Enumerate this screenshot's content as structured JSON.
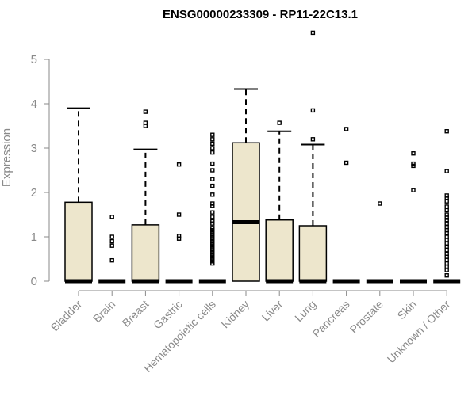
{
  "chart_data": {
    "type": "boxplot",
    "title": "ENSG00000233309 - RP11-22C13.1",
    "xlabel": "",
    "ylabel": "Expression",
    "ylim": [
      0,
      5.7
    ],
    "yticks": [
      0,
      1,
      2,
      3,
      4,
      5
    ],
    "categories": [
      "Bladder",
      "Brain",
      "Breast",
      "Gastric",
      "Hematopoietic cells",
      "Kidney",
      "Liver",
      "Lung",
      "Pancreas",
      "Prostate",
      "Skin",
      "Unknown / Other"
    ],
    "boxes": [
      {
        "q1": 0,
        "median": 0,
        "q3": 1.78,
        "whisker_low": 0,
        "whisker_high": 3.9,
        "outliers": []
      },
      {
        "q1": 0,
        "median": 0,
        "q3": 0,
        "whisker_low": 0,
        "whisker_high": 0,
        "outliers": [
          1.45,
          1.0,
          0.9,
          0.8,
          0.47
        ]
      },
      {
        "q1": 0,
        "median": 0,
        "q3": 1.27,
        "whisker_low": 0,
        "whisker_high": 2.97,
        "outliers": [
          3.82,
          3.57,
          3.5
        ]
      },
      {
        "q1": 0,
        "median": 0,
        "q3": 0,
        "whisker_low": 0,
        "whisker_high": 0,
        "outliers": [
          2.63,
          1.5,
          1.02,
          0.96
        ]
      },
      {
        "q1": 0,
        "median": 0,
        "q3": 0,
        "whisker_low": 0,
        "whisker_high": 0,
        "outliers": [
          3.3,
          3.2,
          3.1,
          3.0,
          2.9,
          2.65,
          2.5,
          2.3,
          2.15,
          1.95,
          1.75,
          1.7,
          1.55,
          1.45,
          1.35,
          1.3,
          1.2,
          1.15,
          1.1,
          1.05,
          1.0,
          0.95,
          0.9,
          0.85,
          0.8,
          0.75,
          0.7,
          0.65,
          0.6,
          0.55,
          0.5,
          0.45,
          0.4
        ]
      },
      {
        "q1": 0,
        "median": 1.33,
        "q3": 3.12,
        "whisker_low": 0,
        "whisker_high": 4.33,
        "outliers": []
      },
      {
        "q1": 0,
        "median": 0,
        "q3": 1.38,
        "whisker_low": 0,
        "whisker_high": 3.38,
        "outliers": [
          3.57
        ]
      },
      {
        "q1": 0,
        "median": 0,
        "q3": 1.25,
        "whisker_low": 0,
        "whisker_high": 3.08,
        "outliers": [
          5.6,
          3.85,
          3.2
        ]
      },
      {
        "q1": 0,
        "median": 0,
        "q3": 0,
        "whisker_low": 0,
        "whisker_high": 0,
        "outliers": [
          3.43,
          2.67
        ]
      },
      {
        "q1": 0,
        "median": 0,
        "q3": 0,
        "whisker_low": 0,
        "whisker_high": 0,
        "outliers": [
          1.75
        ]
      },
      {
        "q1": 0,
        "median": 0,
        "q3": 0,
        "whisker_low": 0,
        "whisker_high": 0,
        "outliers": [
          2.88,
          2.65,
          2.6,
          2.05
        ]
      },
      {
        "q1": 0,
        "median": 0,
        "q3": 0,
        "whisker_low": 0,
        "whisker_high": 0,
        "outliers": [
          3.38,
          2.48,
          1.93,
          1.88,
          1.8,
          1.68,
          1.6,
          1.5,
          1.43,
          1.38,
          1.3,
          1.22,
          1.15,
          1.08,
          1.0,
          0.93,
          0.85,
          0.78,
          0.7,
          0.62,
          0.55,
          0.48,
          0.4,
          0.33,
          0.25,
          0.13
        ]
      }
    ],
    "colors": {
      "box_fill": "#ede6cc",
      "box_stroke": "#000000",
      "axis": "#8a8a8a"
    }
  }
}
